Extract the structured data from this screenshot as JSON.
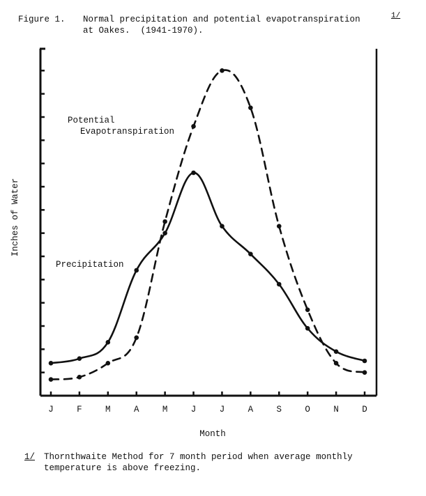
{
  "caption": {
    "figure_number": "Figure 1.",
    "line1": "Normal precipitation and potential evapotranspiration",
    "line2": "at Oakes.  (1941-1970).",
    "footnote_ref": "1/"
  },
  "footnote": {
    "mark": "1/",
    "line1": "Thornthwaite Method for 7 month period when average monthly",
    "line2": "temperature is above freezing."
  },
  "chart_data": {
    "type": "line",
    "title": "Normal precipitation and potential evapotranspiration at Oakes. (1941-1970).",
    "xlabel": "Month",
    "ylabel": "Inches of Water",
    "categories": [
      "J",
      "F",
      "M",
      "A",
      "M",
      "J",
      "J",
      "A",
      "S",
      "O",
      "N",
      "D"
    ],
    "y_units_note": "y-axis tick marks are unlabeled; values expressed in tick intervals above the x-axis",
    "ylim": [
      0,
      15
    ],
    "y_tick_count": 15,
    "grid": false,
    "legend": "inline labels",
    "series": [
      {
        "name": "Precipitation",
        "label": "Precipitation",
        "style": "solid",
        "values": [
          1.4,
          1.6,
          2.3,
          5.4,
          7.0,
          9.6,
          7.3,
          6.1,
          4.8,
          2.9,
          1.9,
          1.5
        ]
      },
      {
        "name": "Potential Evapotranspiration",
        "label_line1": "Potential",
        "label_line2": "Evapotranspiration",
        "style": "dashed",
        "values": [
          0.7,
          0.8,
          1.4,
          2.5,
          7.5,
          11.6,
          14.0,
          12.4,
          7.3,
          3.7,
          1.4,
          1.0
        ]
      }
    ]
  }
}
